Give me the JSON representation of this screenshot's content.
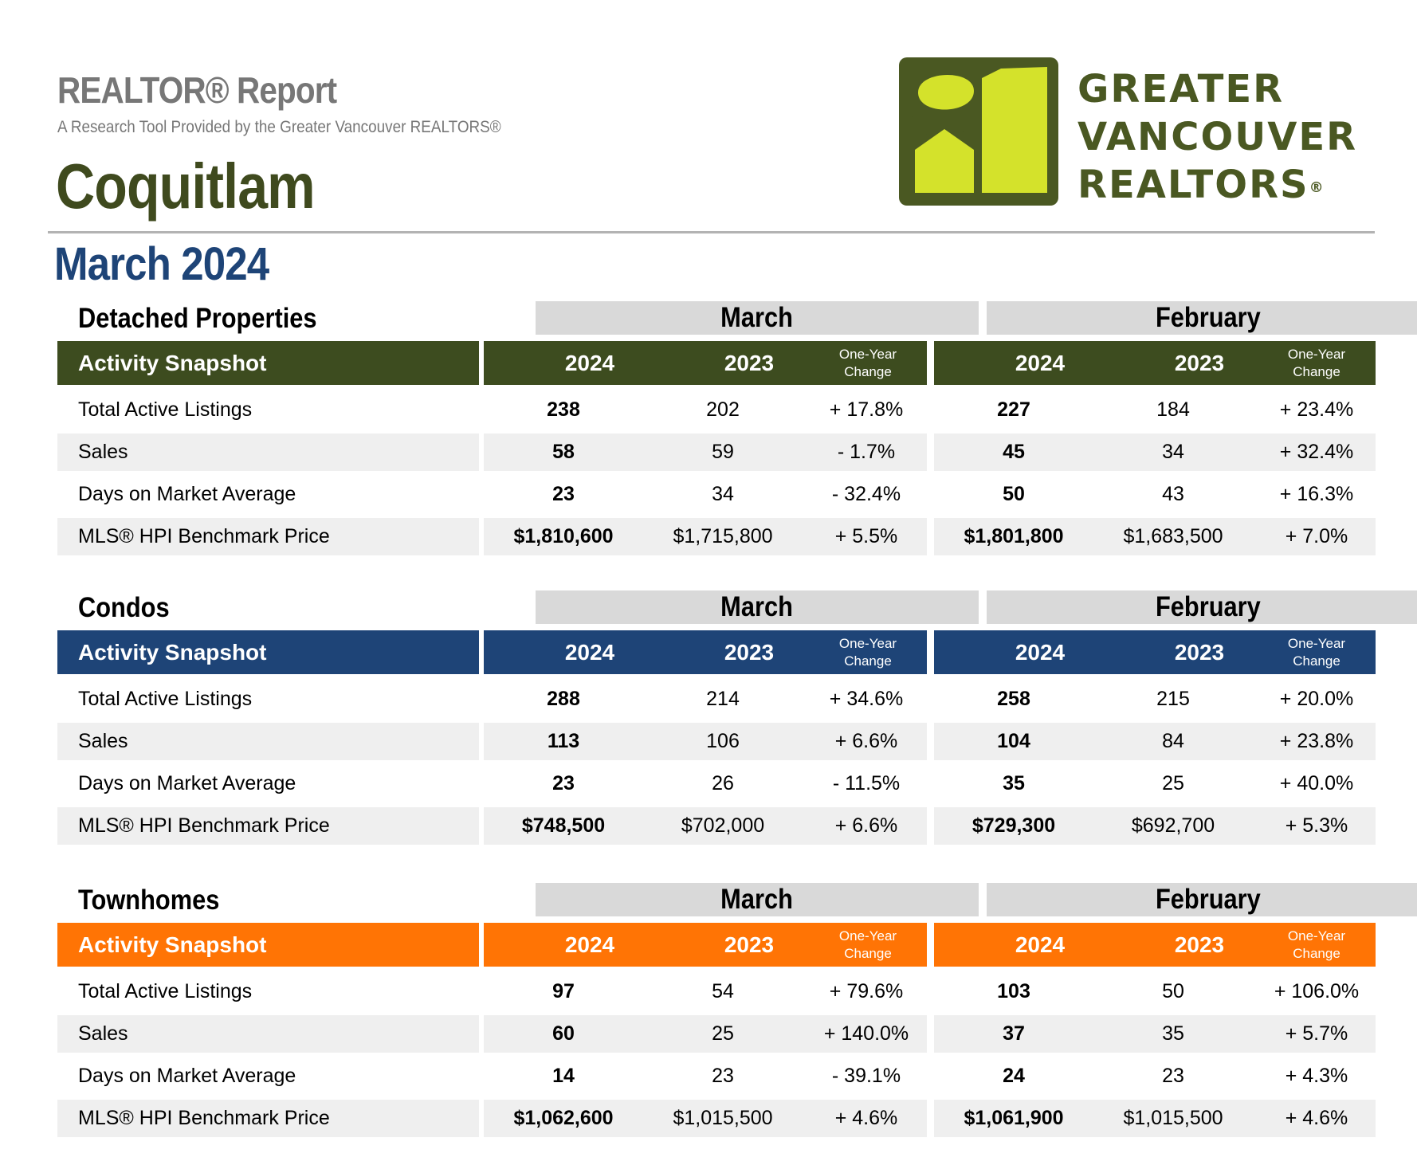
{
  "header": {
    "report_label": "REALTOR® Report",
    "subtitle": "A Research Tool Provided by the Greater Vancouver REALTORS®",
    "area": "Coquitlam",
    "period": "March 2024"
  },
  "logo": {
    "line1": "GREATER",
    "line2": "VANCOUVER",
    "line3": "REALTORS",
    "mark": "®",
    "colors": {
      "frame": "#4a5822",
      "fill": "#d4e22b"
    }
  },
  "column_headers": {
    "month_current": "March",
    "month_previous": "February",
    "snapshot": "Activity Snapshot",
    "year_current": "2024",
    "year_previous": "2023",
    "change_line1": "One-Year",
    "change_line2": "Change"
  },
  "row_labels": [
    "Total Active Listings",
    "Sales",
    "Days on Market Average",
    "MLS® HPI Benchmark Price"
  ],
  "sections": [
    {
      "title": "Detached Properties",
      "color": "#3d4c1f",
      "rows": [
        {
          "m24": "238",
          "m23": "202",
          "mchg": "+ 17.8%",
          "f24": "227",
          "f23": "184",
          "fchg": "+ 23.4%"
        },
        {
          "m24": "58",
          "m23": "59",
          "mchg": "- 1.7%",
          "f24": "45",
          "f23": "34",
          "fchg": "+ 32.4%"
        },
        {
          "m24": "23",
          "m23": "34",
          "mchg": "- 32.4%",
          "f24": "50",
          "f23": "43",
          "fchg": "+ 16.3%"
        },
        {
          "m24": "$1,810,600",
          "m23": "$1,715,800",
          "mchg": "+ 5.5%",
          "f24": "$1,801,800",
          "f23": "$1,683,500",
          "fchg": "+ 7.0%"
        }
      ]
    },
    {
      "title": "Condos",
      "color": "#1e4477",
      "rows": [
        {
          "m24": "288",
          "m23": "214",
          "mchg": "+ 34.6%",
          "f24": "258",
          "f23": "215",
          "fchg": "+ 20.0%"
        },
        {
          "m24": "113",
          "m23": "106",
          "mchg": "+ 6.6%",
          "f24": "104",
          "f23": "84",
          "fchg": "+ 23.8%"
        },
        {
          "m24": "23",
          "m23": "26",
          "mchg": "- 11.5%",
          "f24": "35",
          "f23": "25",
          "fchg": "+ 40.0%"
        },
        {
          "m24": "$748,500",
          "m23": "$702,000",
          "mchg": "+ 6.6%",
          "f24": "$729,300",
          "f23": "$692,700",
          "fchg": "+ 5.3%"
        }
      ]
    },
    {
      "title": "Townhomes",
      "color": "#ff7405",
      "rows": [
        {
          "m24": "97",
          "m23": "54",
          "mchg": "+ 79.6%",
          "f24": "103",
          "f23": "50",
          "fchg": "+ 106.0%"
        },
        {
          "m24": "60",
          "m23": "25",
          "mchg": "+ 140.0%",
          "f24": "37",
          "f23": "35",
          "fchg": "+ 5.7%"
        },
        {
          "m24": "14",
          "m23": "23",
          "mchg": "- 39.1%",
          "f24": "24",
          "f23": "23",
          "fchg": "+ 4.3%"
        },
        {
          "m24": "$1,062,600",
          "m23": "$1,015,500",
          "mchg": "+ 4.6%",
          "f24": "$1,061,900",
          "f23": "$1,015,500",
          "fchg": "+ 4.6%"
        }
      ]
    }
  ]
}
